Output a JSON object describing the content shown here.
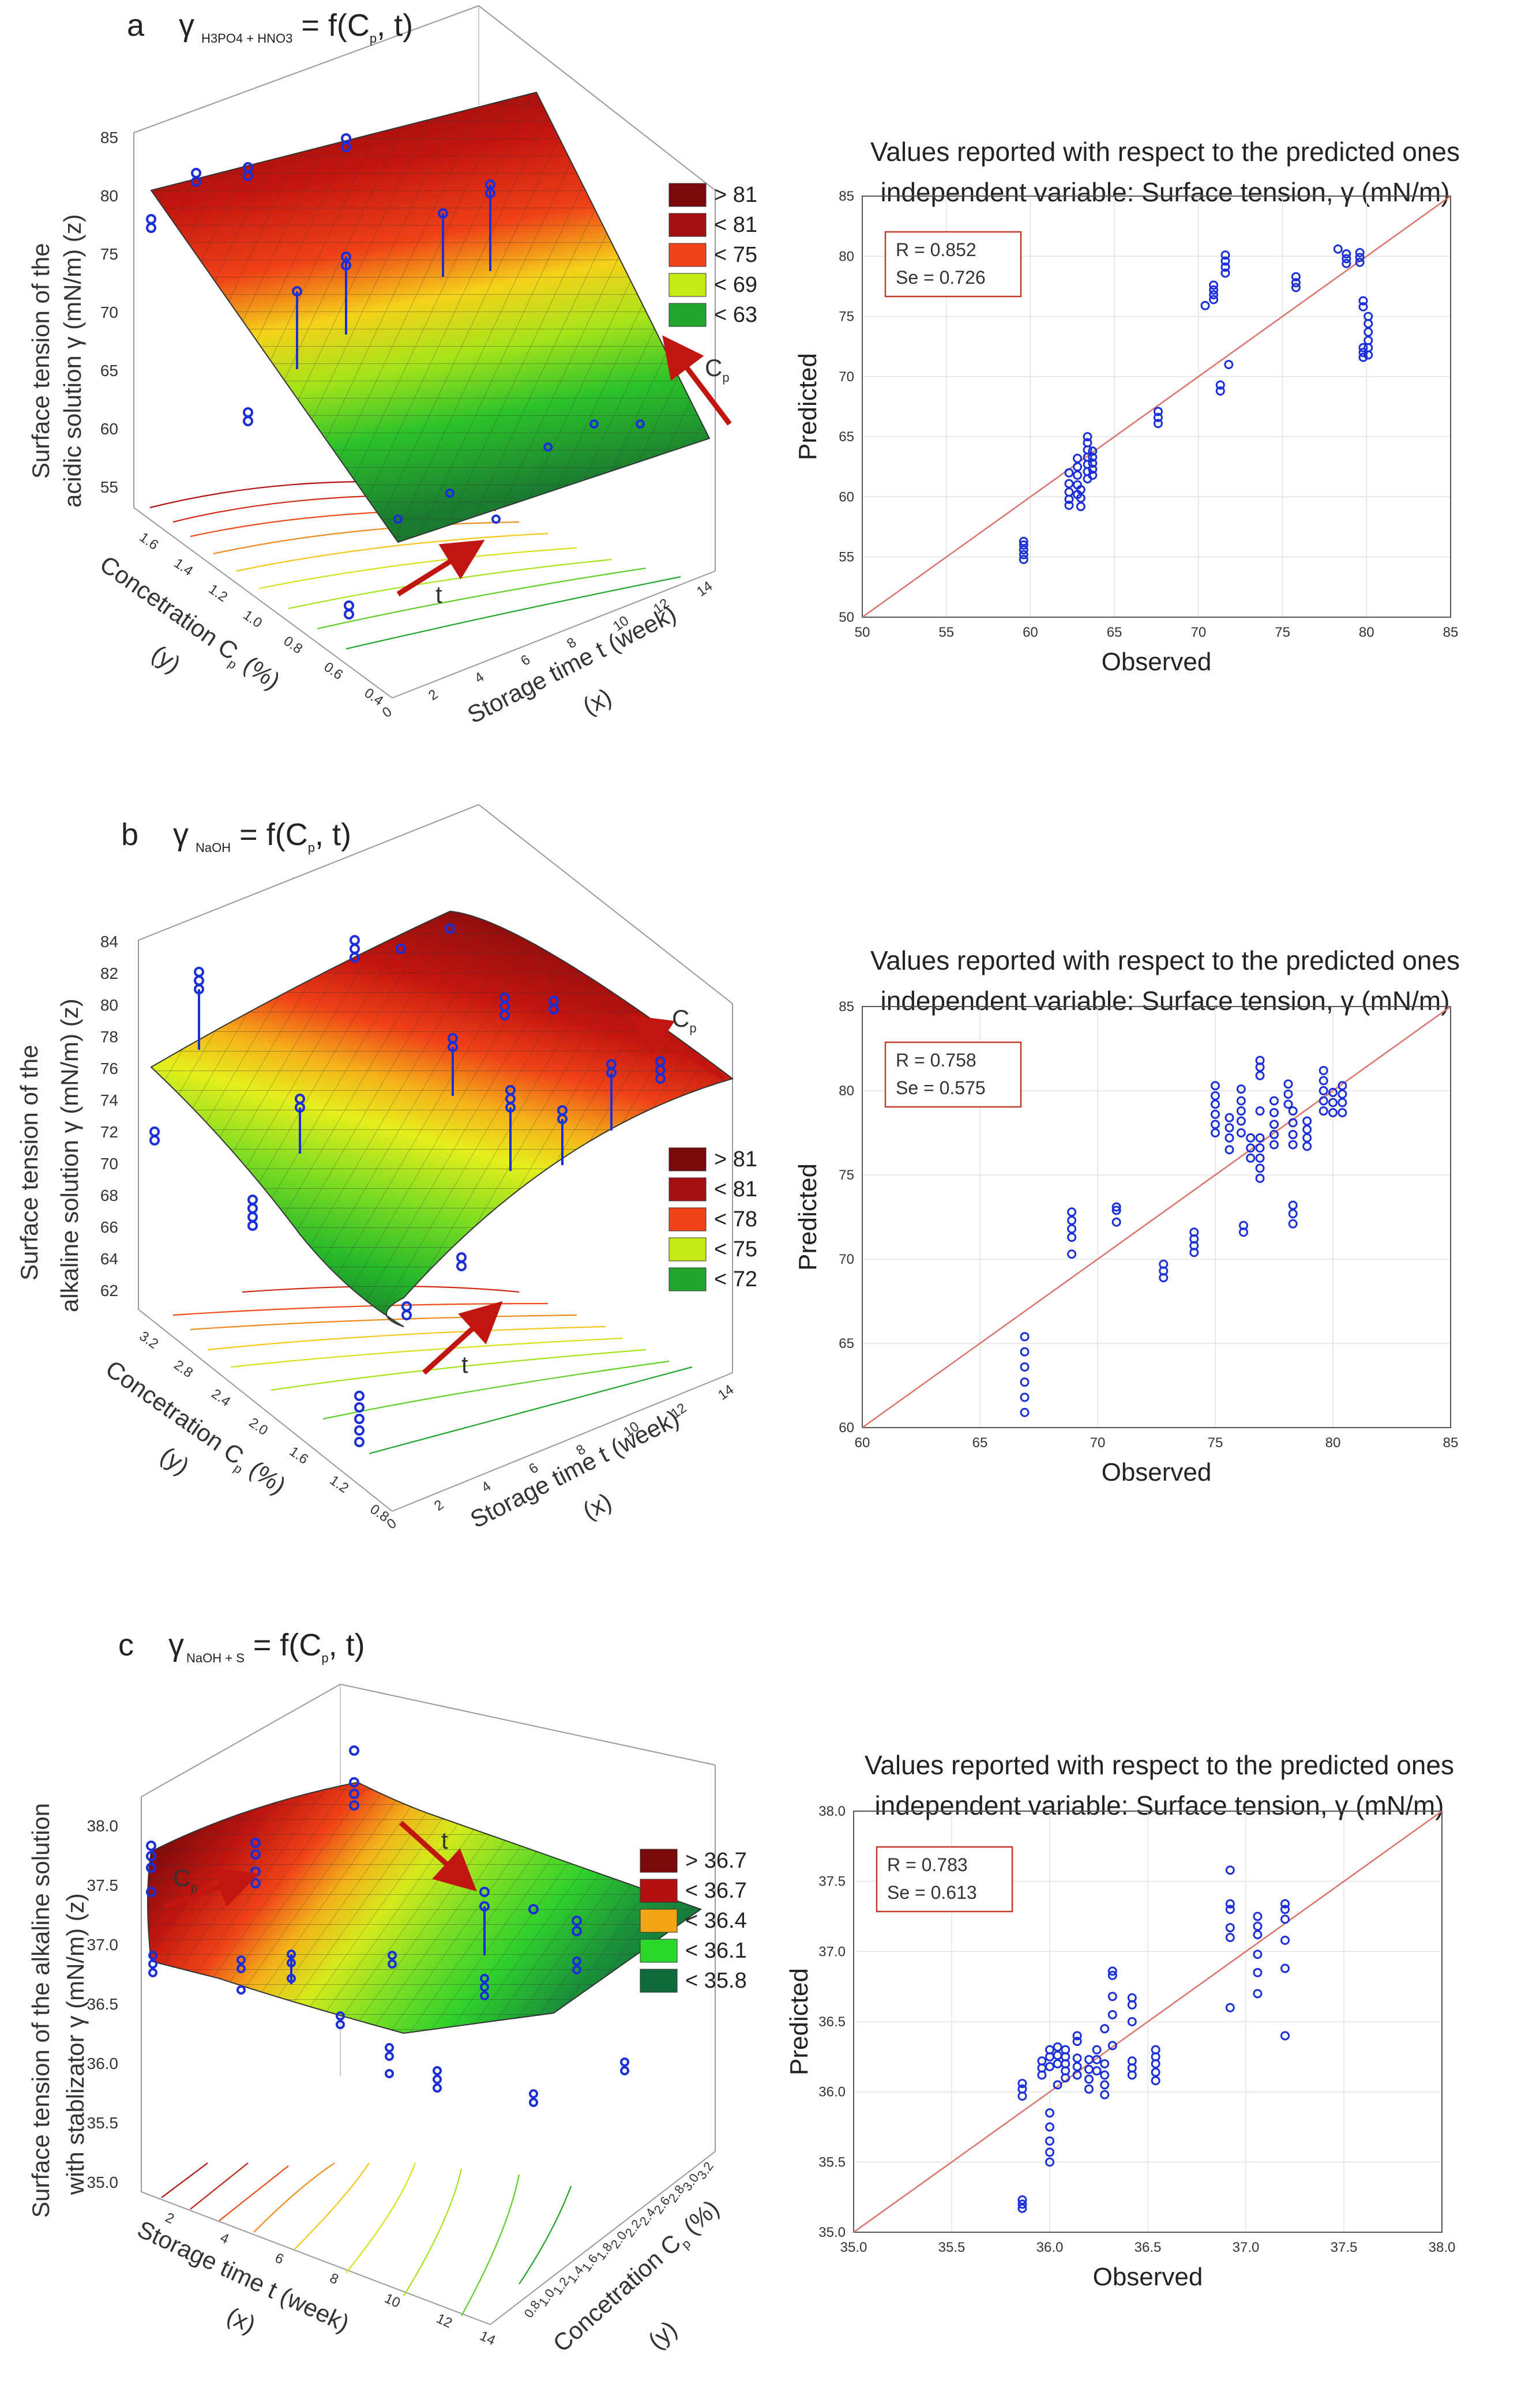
{
  "panels": [
    {
      "letter": "a",
      "formula": {
        "y": "γ",
        "sub": "H3PO4 + HNO3",
        "rest": " = f(C",
        "p": "p",
        "end": ", t)"
      },
      "zlabel": [
        "Surface tension of the",
        "acidic solution γ (mN/m) (z)"
      ],
      "zticks": [
        "85",
        "80",
        "75",
        "70",
        "65",
        "60",
        "55"
      ],
      "concentration_ticks": [
        "1.6",
        "1.4",
        "1.2",
        "1.0",
        "0.8",
        "0.6",
        "0.4"
      ],
      "time_ticks": [
        "0",
        "2",
        "4",
        "6",
        "8",
        "10",
        "12",
        "14"
      ],
      "conc_label": "Concetration C",
      "conc_label_tail": " (%)",
      "conc_var": "(y)",
      "time_label": "Storage time t (week)",
      "time_var": "(x)",
      "legend": [
        {
          "label": "> 81",
          "color": "#7a0a0a"
        },
        {
          "label": "< 81",
          "color": "#a50f0f"
        },
        {
          "label": "< 75",
          "color": "#f04418"
        },
        {
          "label": "< 69",
          "color": "#c6ea14"
        },
        {
          "label": "< 63",
          "color": "#22a52c"
        }
      ],
      "arrow_cp": "C",
      "arrow_t": "t"
    },
    {
      "letter": "b",
      "formula": {
        "y": "γ",
        "sub": "NaOH",
        "rest": " = f(C",
        "p": "p",
        "end": ", t)"
      },
      "zlabel": [
        "Surface tension of the",
        "alkaline solution γ (mN/m) (z)"
      ],
      "zticks": [
        "84",
        "82",
        "80",
        "78",
        "76",
        "74",
        "72",
        "70",
        "68",
        "66",
        "64",
        "62"
      ],
      "concentration_ticks": [
        "3.2",
        "2.8",
        "2.4",
        "2.0",
        "1.6",
        "1.2",
        "0.8"
      ],
      "time_ticks": [
        "0",
        "2",
        "4",
        "6",
        "8",
        "10",
        "12",
        "14"
      ],
      "conc_label": "Concetration C",
      "conc_label_tail": " (%)",
      "conc_var": "(y)",
      "time_label": "Storage time t (week)",
      "time_var": "(x)",
      "legend": [
        {
          "label": "> 81",
          "color": "#7a0a0a"
        },
        {
          "label": "< 81",
          "color": "#a50f0f"
        },
        {
          "label": "< 78",
          "color": "#f04418"
        },
        {
          "label": "< 75",
          "color": "#c6ea14"
        },
        {
          "label": "< 72",
          "color": "#22a52c"
        }
      ],
      "arrow_cp": "C",
      "arrow_t": "t"
    },
    {
      "letter": "c",
      "formula": {
        "y": "γ",
        "sub": "NaOH + S",
        "rest": " = f(C",
        "p": "p",
        "end": ", t)"
      },
      "zlabel": [
        "Surface tension of the alkaline solution",
        "with stablizator γ (mN/m) (z)"
      ],
      "zticks": [
        "38.0",
        "37.5",
        "37.0",
        "36.5",
        "36.0",
        "35.5",
        "35.0"
      ],
      "concentration_ticks": [
        "3.2",
        "3.0",
        "2.8",
        "2.6",
        "2.4",
        "2.2",
        "2.0",
        "1.8",
        "1.6",
        "1.4",
        "1.2",
        "1.0",
        "0.8"
      ],
      "time_ticks": [
        "2",
        "4",
        "6",
        "8",
        "10",
        "12",
        "14"
      ],
      "conc_label": "Concetration C",
      "conc_label_tail": " (%)",
      "conc_var": "(y)",
      "time_label": "Storage time t (week)",
      "time_var": "(x)",
      "legend": [
        {
          "label": "> 36.7",
          "color": "#7a0a0a"
        },
        {
          "label": "< 36.7",
          "color": "#b3100f"
        },
        {
          "label": "< 36.4",
          "color": "#f2a614"
        },
        {
          "label": "< 36.1",
          "color": "#29d82a"
        },
        {
          "label": "< 35.8",
          "color": "#0f6b3c"
        }
      ],
      "arrow_cp": "C",
      "arrow_t": "t"
    }
  ],
  "chart_data": [
    {
      "type": "scatter",
      "title": "Values reported with respect to the predicted ones",
      "subtitle": "independent variable: Surface tension, γ (mN/m)",
      "xlabel": "Observed",
      "ylabel": "Predicted",
      "xlim": [
        50,
        85
      ],
      "ylim": [
        50,
        85
      ],
      "ticks": [
        50,
        55,
        60,
        65,
        70,
        75,
        80,
        85
      ],
      "tick_labels": [
        "50",
        "55",
        "60",
        "65",
        "70",
        "75",
        "80",
        "85"
      ],
      "stats": [
        "R = 0.852",
        "Se = 0.726"
      ],
      "reference_line": "y = x",
      "clusters": [
        {
          "x": 59.6,
          "y": [
            54.8,
            55.2,
            55.6,
            56.0,
            56.3
          ]
        },
        {
          "x": 62.3,
          "y": [
            59.3,
            59.8,
            60.4,
            61.1,
            62.0
          ]
        },
        {
          "x": 62.8,
          "y": [
            60.2,
            61.0,
            61.8,
            62.5,
            63.2
          ]
        },
        {
          "x": 63.0,
          "y": [
            59.2,
            59.9,
            60.6
          ]
        },
        {
          "x": 63.4,
          "y": [
            61.5,
            62.1,
            62.7,
            63.3,
            63.9,
            64.5,
            65.0
          ]
        },
        {
          "x": 63.7,
          "y": [
            61.8,
            62.3,
            62.8,
            63.3,
            63.8
          ]
        },
        {
          "x": 67.6,
          "y": [
            66.1,
            66.6,
            67.1
          ]
        },
        {
          "x": 70.4,
          "y": [
            75.9
          ]
        },
        {
          "x": 70.9,
          "y": [
            76.4,
            76.8,
            77.2,
            77.6
          ]
        },
        {
          "x": 71.3,
          "y": [
            68.8,
            69.3
          ]
        },
        {
          "x": 71.6,
          "y": [
            78.6,
            79.1,
            79.6,
            80.1
          ]
        },
        {
          "x": 71.8,
          "y": [
            71.0
          ]
        },
        {
          "x": 75.8,
          "y": [
            77.4,
            77.8,
            78.3
          ]
        },
        {
          "x": 78.3,
          "y": [
            80.6
          ]
        },
        {
          "x": 78.8,
          "y": [
            79.4,
            79.8,
            80.2
          ]
        },
        {
          "x": 79.6,
          "y": [
            79.5,
            79.9,
            80.3
          ]
        },
        {
          "x": 79.8,
          "y": [
            71.6,
            72.0,
            72.4,
            75.8,
            76.3
          ]
        },
        {
          "x": 80.1,
          "y": [
            71.8,
            72.4,
            73.0,
            73.7,
            74.4,
            75.0
          ]
        }
      ]
    },
    {
      "type": "scatter",
      "title": "Values reported with respect to the predicted ones",
      "subtitle": "independent variable: Surface tension, γ (mN/m)",
      "xlabel": "Observed",
      "ylabel": "Predicted",
      "xlim": [
        60,
        85
      ],
      "ylim": [
        60,
        85
      ],
      "ticks": [
        60,
        65,
        70,
        75,
        80,
        85
      ],
      "tick_labels": [
        "60",
        "65",
        "70",
        "75",
        "80",
        "85"
      ],
      "stats": [
        "R = 0.758",
        "Se = 0.575"
      ],
      "reference_line": "y = x",
      "clusters": [
        {
          "x": 66.9,
          "y": [
            60.9,
            61.8,
            62.7,
            63.6,
            64.5,
            65.4
          ]
        },
        {
          "x": 68.9,
          "y": [
            70.3,
            71.3,
            71.8,
            72.3,
            72.8
          ]
        },
        {
          "x": 70.8,
          "y": [
            72.2,
            72.9,
            73.1
          ]
        },
        {
          "x": 72.8,
          "y": [
            68.9,
            69.3,
            69.7
          ]
        },
        {
          "x": 74.1,
          "y": [
            70.4,
            70.8,
            71.2,
            71.6
          ]
        },
        {
          "x": 75.0,
          "y": [
            77.5,
            78.0,
            78.6,
            79.2,
            79.7,
            80.3
          ]
        },
        {
          "x": 75.6,
          "y": [
            76.5,
            77.2,
            77.8,
            78.4
          ]
        },
        {
          "x": 76.1,
          "y": [
            77.5,
            78.2,
            78.8,
            79.4,
            80.1
          ]
        },
        {
          "x": 76.2,
          "y": [
            71.6,
            72.0
          ]
        },
        {
          "x": 76.5,
          "y": [
            76.0,
            76.6,
            77.2
          ]
        },
        {
          "x": 76.9,
          "y": [
            74.8,
            75.4,
            76.0,
            76.6,
            77.2,
            78.8,
            80.9,
            81.4,
            81.8
          ]
        },
        {
          "x": 77.5,
          "y": [
            76.8,
            77.4,
            78.0,
            78.7,
            79.4
          ]
        },
        {
          "x": 78.1,
          "y": [
            79.2,
            79.8,
            80.4
          ]
        },
        {
          "x": 78.3,
          "y": [
            72.1,
            72.7,
            73.2,
            76.8,
            77.4,
            78.1,
            78.8
          ]
        },
        {
          "x": 78.9,
          "y": [
            76.7,
            77.2,
            77.7,
            78.2
          ]
        },
        {
          "x": 79.6,
          "y": [
            78.8,
            79.4,
            80.0,
            80.6,
            81.2
          ]
        },
        {
          "x": 80.0,
          "y": [
            78.7,
            79.3,
            79.9
          ]
        },
        {
          "x": 80.4,
          "y": [
            78.7,
            79.3,
            79.8,
            80.3
          ]
        }
      ]
    },
    {
      "type": "scatter",
      "title": "Values reported with respect to the predicted ones",
      "subtitle": "independent variable: Surface tension, γ (mN/m)",
      "xlabel": "Observed",
      "ylabel": "Predicted",
      "xlim": [
        35.0,
        38.0
      ],
      "ylim": [
        35.0,
        38.0
      ],
      "ticks": [
        35.0,
        35.5,
        36.0,
        36.5,
        37.0,
        37.5,
        38.0
      ],
      "tick_labels": [
        "35.0",
        "35.5",
        "36.0",
        "36.5",
        "37.0",
        "37.5",
        "38.0"
      ],
      "stats": [
        "R = 0.783",
        "Se = 0.613"
      ],
      "reference_line": "y = x",
      "clusters": [
        {
          "x": 35.86,
          "y": [
            35.17,
            35.2,
            35.23,
            35.97,
            36.02,
            36.06
          ]
        },
        {
          "x": 35.96,
          "y": [
            36.12,
            36.17,
            36.22
          ]
        },
        {
          "x": 36.0,
          "y": [
            35.5,
            35.57,
            35.65,
            35.75,
            35.85,
            36.18,
            36.25,
            36.3
          ]
        },
        {
          "x": 36.04,
          "y": [
            36.2,
            36.26,
            36.32,
            36.05
          ]
        },
        {
          "x": 36.08,
          "y": [
            36.1,
            36.15,
            36.2,
            36.25,
            36.3
          ]
        },
        {
          "x": 36.14,
          "y": [
            36.12,
            36.18,
            36.24,
            36.36,
            36.4
          ]
        },
        {
          "x": 36.2,
          "y": [
            36.02,
            36.09,
            36.16,
            36.23
          ]
        },
        {
          "x": 36.24,
          "y": [
            36.15,
            36.23,
            36.3
          ]
        },
        {
          "x": 36.28,
          "y": [
            35.98,
            36.05,
            36.12,
            36.2,
            36.45
          ]
        },
        {
          "x": 36.32,
          "y": [
            36.33,
            36.55,
            36.68,
            36.83,
            36.86
          ]
        },
        {
          "x": 36.42,
          "y": [
            36.12,
            36.17,
            36.22,
            36.5,
            36.62,
            36.67
          ]
        },
        {
          "x": 36.54,
          "y": [
            36.08,
            36.14,
            36.2,
            36.25,
            36.3
          ]
        },
        {
          "x": 36.92,
          "y": [
            36.6,
            37.1,
            37.17,
            37.3,
            37.34,
            37.58
          ]
        },
        {
          "x": 37.06,
          "y": [
            36.7,
            36.85,
            36.98,
            37.12,
            37.18,
            37.25
          ]
        },
        {
          "x": 37.2,
          "y": [
            36.4,
            36.88,
            37.08,
            37.23,
            37.3,
            37.34
          ]
        }
      ]
    }
  ]
}
